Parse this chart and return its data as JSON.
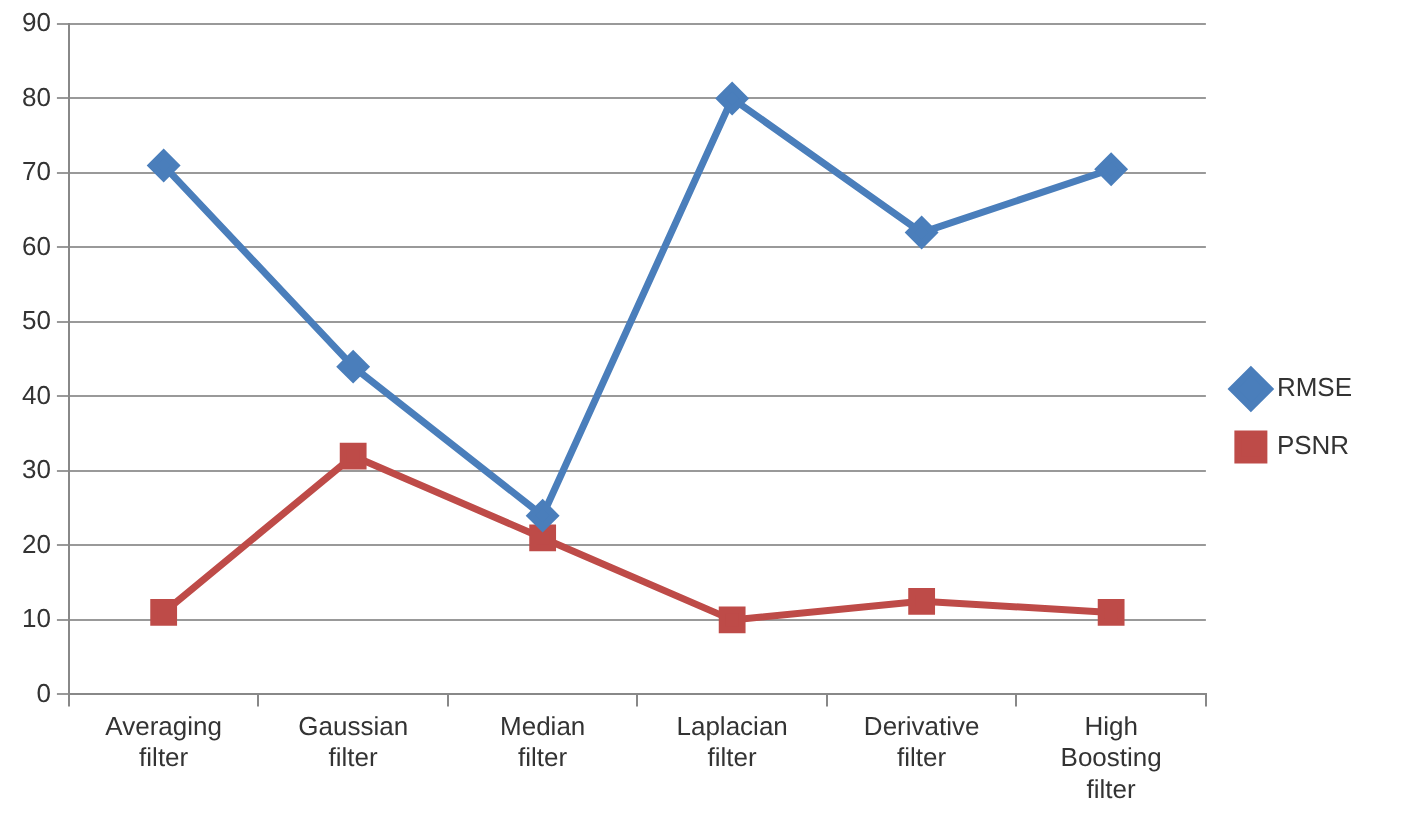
{
  "chart_data": {
    "type": "line",
    "categories": [
      "Averaging filter",
      "Gaussian filter",
      "Median filter",
      "Laplacian filter",
      "Derivative filter",
      "High Boosting filter"
    ],
    "series": [
      {
        "name": "RMSE",
        "color": "#4a7ebb",
        "values": [
          71,
          44,
          24,
          80,
          62,
          70.5
        ],
        "marker": "diamond"
      },
      {
        "name": "PSNR",
        "color": "#be4b48",
        "values": [
          11,
          32,
          21,
          10,
          12.5,
          11
        ],
        "marker": "square"
      }
    ],
    "ylim": [
      0,
      90
    ],
    "yticks": [
      0,
      10,
      20,
      30,
      40,
      50,
      60,
      70,
      80,
      90
    ],
    "grid": "y",
    "legend": "right"
  }
}
